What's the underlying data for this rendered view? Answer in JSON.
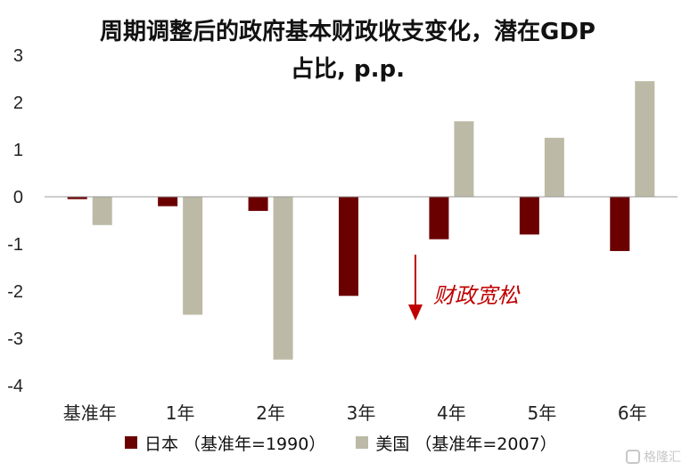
{
  "title_line1": "周期调整后的政府基本财政收支变化，潜在GDP",
  "title_line2": "占比, p.p.",
  "annotation": "财政宽松",
  "watermark": "格隆汇",
  "colors": {
    "japan": "#6b0000",
    "usa": "#bcbaa6",
    "arrow": "#c00000"
  },
  "chart_data": {
    "type": "bar",
    "categories": [
      "基准年",
      "1年",
      "2年",
      "3年",
      "4年",
      "5年",
      "6年"
    ],
    "series": [
      {
        "name": "日本 （基准年=1990）",
        "values": [
          -0.05,
          -0.2,
          -0.3,
          -2.1,
          -0.9,
          -0.8,
          -1.15
        ]
      },
      {
        "name": "美国 （基准年=2007）",
        "values": [
          -0.6,
          -2.5,
          -3.45,
          null,
          1.6,
          1.25,
          2.45
        ]
      }
    ],
    "ylim": [
      -4,
      3
    ],
    "yticks": [
      "-4",
      "-3",
      "-2",
      "-1",
      "0",
      "1",
      "2",
      "3"
    ],
    "grid": false,
    "legend": "bottom"
  }
}
